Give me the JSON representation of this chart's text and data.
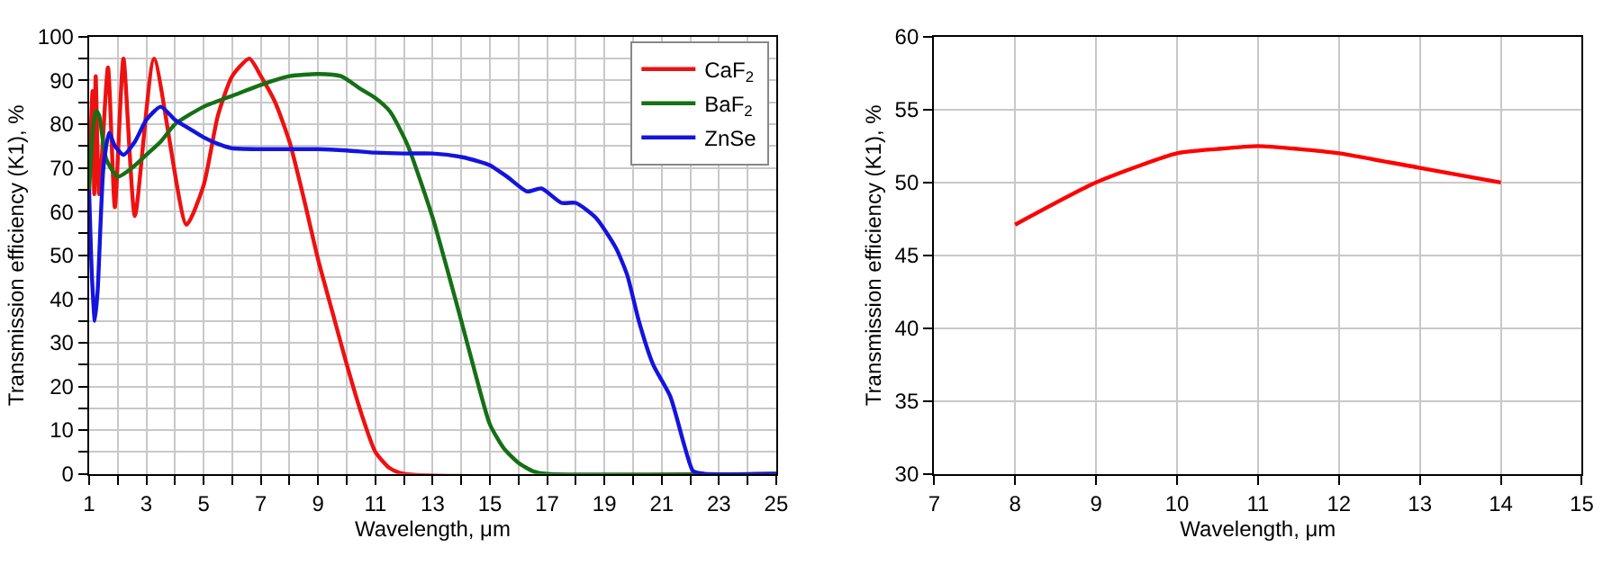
{
  "chart_data": [
    {
      "type": "line",
      "xlabel": "Wavelength, μm",
      "ylabel": "Transmission efficiency (K1), %",
      "xlim": [
        1,
        25
      ],
      "xticks": [
        1,
        {
          "value": 2,
          "label": null
        },
        3,
        {
          "value": 4,
          "label": null
        },
        5,
        {
          "value": 6,
          "label": null
        },
        7,
        {
          "value": 8,
          "label": null
        },
        9,
        {
          "value": 10,
          "label": null
        },
        11,
        {
          "value": 12,
          "label": null
        },
        13,
        {
          "value": 14,
          "label": null
        },
        15,
        {
          "value": 16,
          "label": null
        },
        17,
        {
          "value": 18,
          "label": null
        },
        19,
        {
          "value": 20,
          "label": null
        },
        21,
        {
          "value": 22,
          "label": null
        },
        23,
        {
          "value": 24,
          "label": null
        },
        25
      ],
      "ylim": [
        0,
        100
      ],
      "yticks": [
        0,
        {
          "value": 5,
          "label": null
        },
        10,
        {
          "value": 15,
          "label": null
        },
        20,
        {
          "value": 25,
          "label": null
        },
        30,
        {
          "value": 35,
          "label": null
        },
        40,
        {
          "value": 45,
          "label": null
        },
        50,
        {
          "value": 55,
          "label": null
        },
        60,
        {
          "value": 65,
          "label": null
        },
        70,
        {
          "value": 75,
          "label": null
        },
        80,
        {
          "value": 85,
          "label": null
        },
        90,
        {
          "value": 95,
          "label": null
        },
        100
      ],
      "grid": true,
      "legend": "top right",
      "marker": "none",
      "line_style": "solid",
      "series": [
        {
          "name": "CaF$_{2}$",
          "color": "#ee1111",
          "x": [
            1.0,
            1.12,
            1.18,
            1.23,
            1.35,
            1.66,
            1.9,
            2.2,
            2.6,
            3.27,
            4.4,
            5.0,
            5.5,
            6.0,
            6.6,
            7.0,
            7.5,
            8.0,
            8.5,
            9.0,
            9.5,
            10.0,
            10.5,
            11.0,
            11.5,
            12.0,
            25.0
          ],
          "values": [
            65,
            87.6,
            64,
            91,
            64,
            93,
            61,
            95,
            59,
            95,
            57,
            66,
            82,
            91,
            95,
            91,
            85,
            76,
            63,
            49,
            37,
            25,
            14,
            5,
            1.3,
            0,
            0
          ]
        },
        {
          "name": "BaF$_{2}$",
          "color": "#157015",
          "x": [
            1.0,
            1.15,
            1.25,
            1.35,
            1.6,
            2.0,
            2.5,
            3.0,
            3.5,
            4.0,
            5.0,
            6.0,
            7.0,
            8.0,
            9.0,
            9.8,
            10.5,
            11.0,
            11.5,
            12.0,
            12.2,
            13.0,
            14.0,
            14.5,
            15.0,
            15.5,
            16.0,
            16.5,
            17.0,
            25.0
          ],
          "values": [
            65,
            80,
            83,
            82,
            72,
            68,
            70,
            73,
            76,
            80,
            84,
            86.5,
            89,
            91,
            91.5,
            91,
            88,
            86,
            83,
            77,
            74,
            58.6,
            35,
            22.7,
            11.3,
            5.7,
            2.5,
            0.6,
            0,
            0
          ]
        },
        {
          "name": "ZnSe",
          "color": "#1414dd",
          "x": [
            1.0,
            1.1,
            1.2,
            1.3,
            1.5,
            1.7,
            1.9,
            2.2,
            2.6,
            3.0,
            3.5,
            4.0,
            4.5,
            5.0,
            5.5,
            6.0,
            7.0,
            8.0,
            9.0,
            10.0,
            11.0,
            12.0,
            13.0,
            14.0,
            14.6,
            15.0,
            15.6,
            16.3,
            16.8,
            17.5,
            18.0,
            18.7,
            19.4,
            19.8,
            20.2,
            20.7,
            21.3,
            21.8,
            22.1,
            22.5,
            25.0
          ],
          "values": [
            65,
            45,
            35,
            42,
            70,
            78,
            75,
            73,
            76,
            81,
            84,
            81,
            79,
            77,
            75.5,
            74.5,
            74.3,
            74.3,
            74.3,
            74,
            73.5,
            73.3,
            73.3,
            72.5,
            71.5,
            70.6,
            68,
            64.6,
            65.3,
            62,
            62,
            58.6,
            51.7,
            45.4,
            35,
            25,
            17.7,
            6.3,
            0.6,
            0,
            0
          ]
        }
      ]
    },
    {
      "type": "line",
      "xlabel": "Wavelength, μm",
      "ylabel": "Transmission efficiency (K1), %",
      "xlim": [
        7,
        15
      ],
      "xticks": [
        7,
        8,
        9,
        10,
        11,
        12,
        13,
        14,
        15
      ],
      "ylim": [
        30,
        60
      ],
      "yticks": [
        30,
        35,
        40,
        45,
        50,
        55,
        60
      ],
      "grid": true,
      "marker": "none",
      "line_style": "solid",
      "series": [
        {
          "color": "#ff0000",
          "x": [
            8,
            9,
            10,
            10.5,
            11,
            11.5,
            12,
            13,
            14
          ],
          "values": [
            47.1,
            50,
            52,
            52.3,
            52.5,
            52.3,
            52,
            51,
            50
          ]
        }
      ]
    }
  ]
}
